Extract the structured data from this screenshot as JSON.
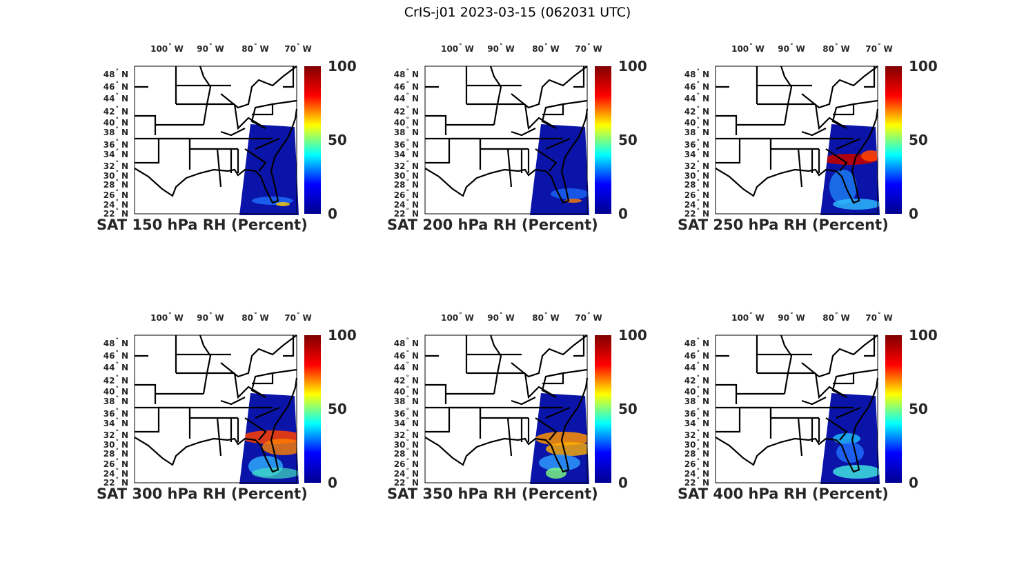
{
  "figure_title": "CrIS-j01 2023-03-15 (062031 UTC)",
  "lon_labels": [
    "100",
    "90",
    "80",
    "70"
  ],
  "lon_hemisphere": "W",
  "lat_labels": [
    "48",
    "46",
    "44",
    "42",
    "40",
    "38",
    "36",
    "34",
    "32",
    "30",
    "28",
    "26",
    "24",
    "22"
  ],
  "lat_hemisphere": "N",
  "colorbar": {
    "ticks": [
      "100",
      "50",
      "0"
    ],
    "range": [
      0,
      100
    ],
    "colors": [
      "#00008f",
      "#0000ff",
      "#00ffff",
      "#ffff00",
      "#ff0000",
      "#800000"
    ]
  },
  "panels": [
    {
      "title": "SAT 150 hPa RH (Percent)",
      "pressure_hPa": 150
    },
    {
      "title": "SAT 200 hPa RH (Percent)",
      "pressure_hPa": 200
    },
    {
      "title": "SAT 250 hPa RH (Percent)",
      "pressure_hPa": 250
    },
    {
      "title": "SAT 300 hPa RH (Percent)",
      "pressure_hPa": 300
    },
    {
      "title": "SAT 350 hPa RH (Percent)",
      "pressure_hPa": 350
    },
    {
      "title": "SAT 400 hPa RH (Percent)",
      "pressure_hPa": 400
    }
  ]
}
